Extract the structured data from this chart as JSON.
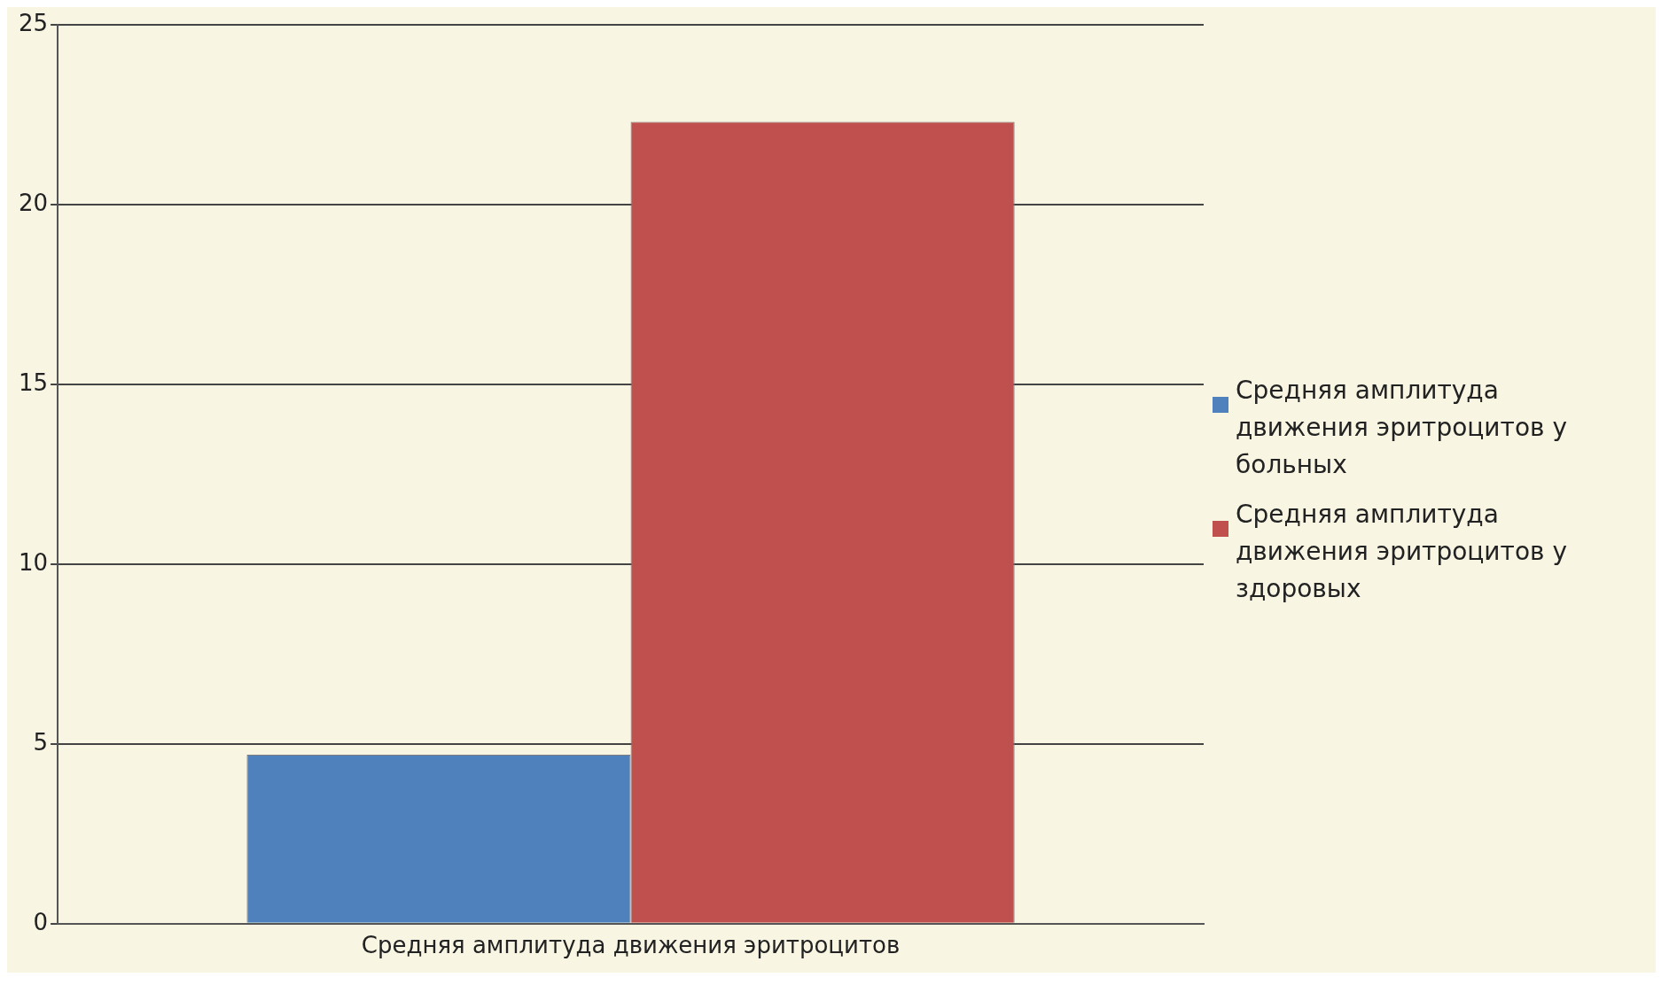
{
  "chart_data": {
    "type": "bar",
    "categories": [
      "Средняя амплитуда движения эритроцитов"
    ],
    "series": [
      {
        "name": "Средняя амплитуда движения эритроцитов у больных",
        "color": "#4f81bd",
        "values": [
          4.7
        ]
      },
      {
        "name": "Средняя амплитуда движения эритроцитов у здоровых",
        "color": "#c0504d",
        "values": [
          22.3
        ]
      }
    ],
    "ylim": [
      0,
      25
    ],
    "yticks": [
      0,
      5,
      10,
      15,
      20,
      25
    ],
    "grid": "y",
    "legend": "right"
  }
}
